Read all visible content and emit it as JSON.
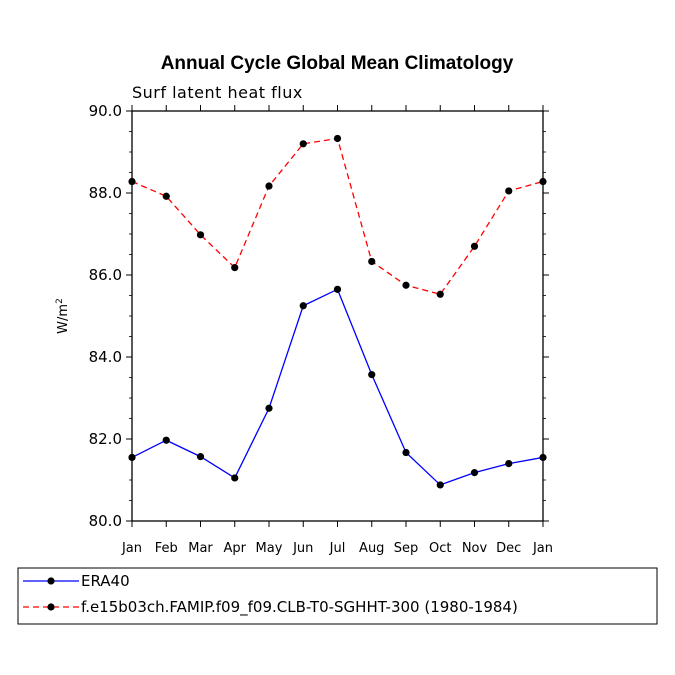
{
  "chart_data": {
    "type": "line",
    "title": "Annual Cycle Global Mean Climatology",
    "subtitle": "Surf latent heat flux",
    "xlabel": "",
    "ylabel": "W/m",
    "ylabel_superscript": "2",
    "categories": [
      "Jan",
      "Feb",
      "Mar",
      "Apr",
      "May",
      "Jun",
      "Jul",
      "Aug",
      "Sep",
      "Oct",
      "Nov",
      "Dec",
      "Jan"
    ],
    "ylim": [
      80.0,
      90.0
    ],
    "yticks": [
      "80.0",
      "82.0",
      "84.0",
      "86.0",
      "88.0",
      "90.0"
    ],
    "grid": false,
    "legend_position": "bottom",
    "series": [
      {
        "name": "ERA40",
        "color": "#0000ff",
        "dash": "solid",
        "values": [
          81.55,
          81.97,
          81.57,
          81.05,
          82.75,
          85.25,
          85.65,
          83.57,
          81.67,
          80.88,
          81.18,
          81.4,
          81.55
        ]
      },
      {
        "name": "f.e15b03ch.FAMIP.f09_f09.CLB-T0-SGHHT-300 (1980-1984)",
        "color": "#ff0000",
        "dash": "dashed",
        "values": [
          88.28,
          87.92,
          86.98,
          86.18,
          88.17,
          89.2,
          89.33,
          86.33,
          85.75,
          85.53,
          86.7,
          88.05,
          88.28
        ]
      }
    ]
  }
}
